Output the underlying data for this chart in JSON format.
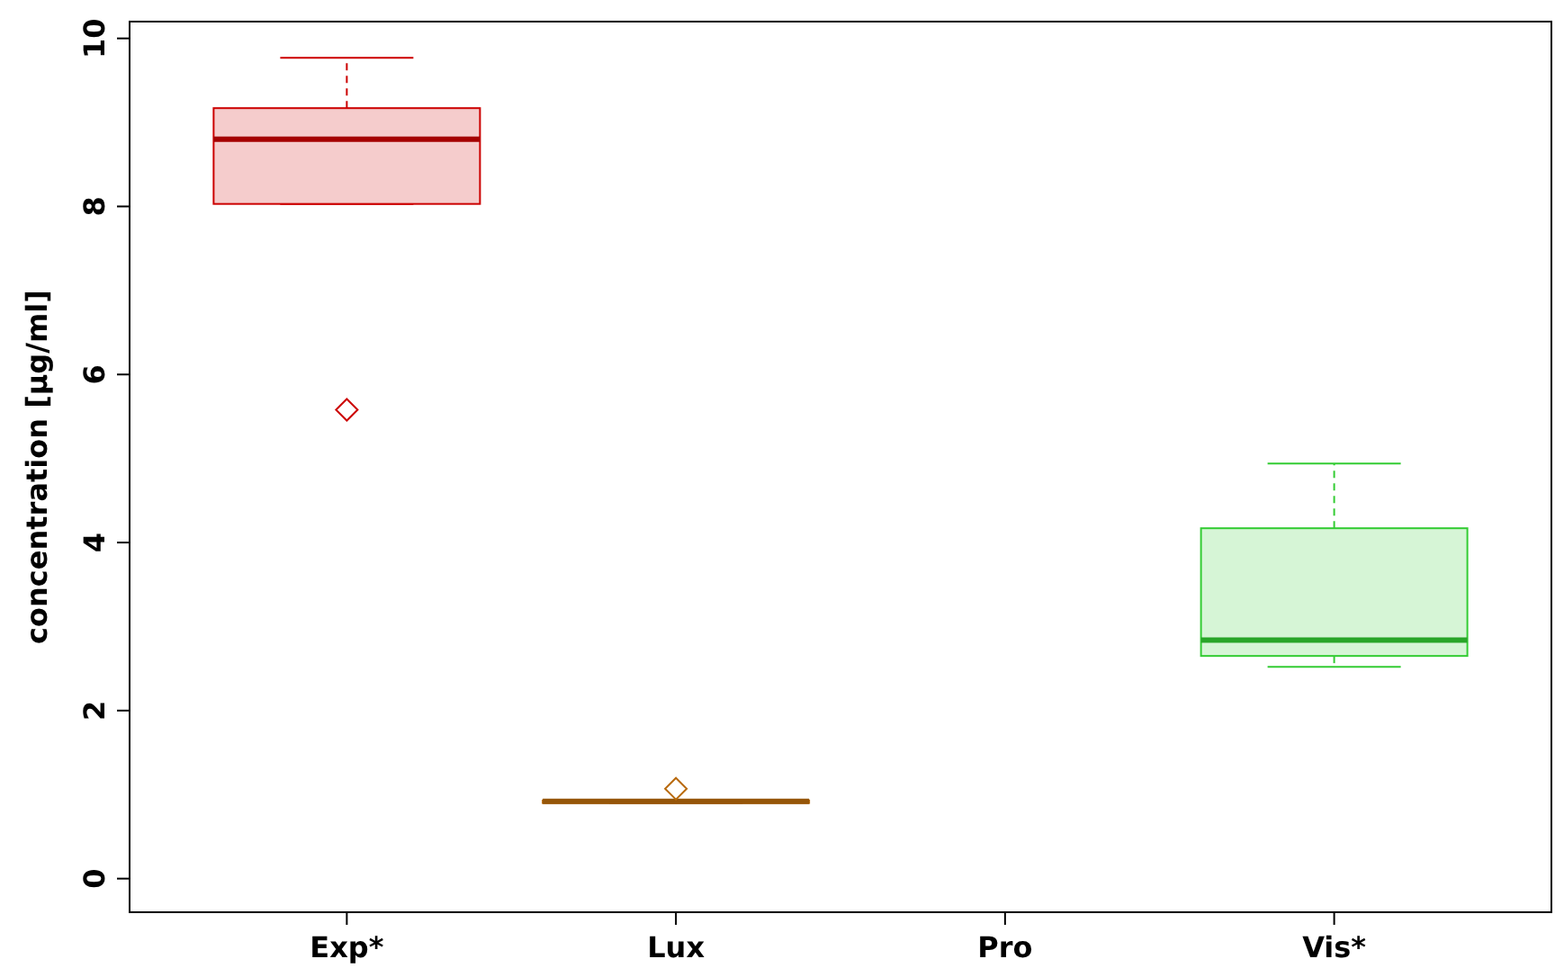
{
  "chart_data": {
    "type": "box",
    "ylabel": "concentration [µg/ml]",
    "categories": [
      "Exp*",
      "Lux",
      "Pro",
      "Vis*"
    ],
    "boxes": [
      {
        "low": 8.03,
        "q1": 8.03,
        "median": 8.8,
        "q3": 9.17,
        "high": 9.77,
        "outliers": [
          5.58
        ]
      },
      {
        "low": 0.9,
        "q1": 0.9,
        "median": 0.92,
        "q3": 0.93,
        "high": 0.93,
        "outliers": [
          1.07
        ]
      },
      null,
      {
        "low": 2.52,
        "q1": 2.65,
        "median": 2.84,
        "q3": 4.17,
        "high": 4.94
      }
    ],
    "colors": [
      "#cc0000",
      "#b8690a",
      null,
      "#33cc33"
    ],
    "ylim": [
      -0.4,
      10.2
    ],
    "yticks": [
      0,
      2,
      4,
      6,
      8,
      10
    ],
    "marker": "diamond",
    "grid": false
  }
}
